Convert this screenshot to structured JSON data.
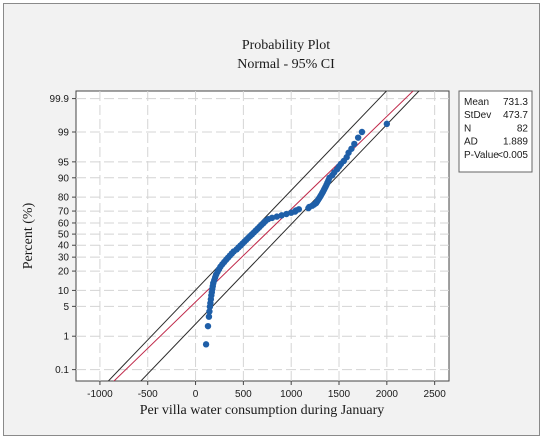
{
  "chart_data": {
    "type": "scatter",
    "title": "Probability Plot",
    "subtitle": "Normal - 95% CI",
    "xlabel": "Per villa water consumption during January",
    "ylabel": "Percent (%)",
    "xlim": [
      -1250,
      2650
    ],
    "x_ticks": [
      -1000,
      -500,
      0,
      500,
      1000,
      1500,
      2000,
      2500
    ],
    "x_tick_labels": [
      "-1000",
      "-500",
      "0",
      "500",
      "1000",
      "1500",
      "2000",
      "2500"
    ],
    "y_scale": "normal-probability",
    "y_ticks": [
      0.1,
      1,
      5,
      10,
      20,
      30,
      40,
      50,
      60,
      70,
      80,
      90,
      95,
      99,
      99.9
    ],
    "y_tick_labels": [
      "0.1",
      "1",
      "5",
      "10",
      "20",
      "30",
      "40",
      "50",
      "60",
      "70",
      "80",
      "90",
      "95",
      "99",
      "99.9"
    ],
    "grid": true,
    "fit": {
      "mean": 731.3,
      "stdev": 473.7
    },
    "stats": [
      {
        "label": "Mean",
        "value": "731.3"
      },
      {
        "label": "StDev",
        "value": "473.7"
      },
      {
        "label": "N",
        "value": "82"
      },
      {
        "label": "AD",
        "value": "1.889"
      },
      {
        "label": "P-Value",
        "value": "<0.005"
      }
    ],
    "series": [
      {
        "x": [
          110,
          130,
          140,
          145,
          150,
          155,
          160,
          165,
          170,
          175,
          180,
          185,
          195,
          205,
          215,
          230,
          245,
          260,
          280,
          300,
          320,
          340,
          360,
          380,
          400,
          430,
          450,
          470,
          490,
          510,
          530,
          550,
          570,
          590,
          610,
          630,
          650,
          670,
          690,
          710,
          730,
          760,
          800,
          850,
          900,
          950,
          1000,
          1040,
          1050,
          1080,
          1180,
          1190,
          1220,
          1240,
          1260,
          1270,
          1280,
          1290,
          1300,
          1310,
          1320,
          1330,
          1340,
          1350,
          1360,
          1370,
          1380,
          1390,
          1400,
          1430,
          1450,
          1480,
          1500,
          1520,
          1550,
          1580,
          1600,
          1630,
          1660,
          1700,
          1740,
          2000
        ],
        "y": [
          0.6,
          1.8,
          3.0,
          3.9,
          4.9,
          5.8,
          6.9,
          8.1,
          9.3,
          10.5,
          11.8,
          13.2,
          14.6,
          16.2,
          17.8,
          19.5,
          21.2,
          22.9,
          24.6,
          26.3,
          28.0,
          29.6,
          31.3,
          33.0,
          34.7,
          36.4,
          38.1,
          39.7,
          41.4,
          43.1,
          44.8,
          46.5,
          48.2,
          49.8,
          51.5,
          53.2,
          54.9,
          56.6,
          58.3,
          59.9,
          61.6,
          63.3,
          64.4,
          65.5,
          66.5,
          67.6,
          68.7,
          69.6,
          70.5,
          71.4,
          72.3,
          73.2,
          74.1,
          75.0,
          76.0,
          77.0,
          78.0,
          79.0,
          80.0,
          81.0,
          82.0,
          83.0,
          84.0,
          85.0,
          86.0,
          87.0,
          88.0,
          89.0,
          90.0,
          91.0,
          92.0,
          93.0,
          93.8,
          94.5,
          95.2,
          96.0,
          96.8,
          97.4,
          98.0,
          98.6,
          99.0,
          99.4
        ]
      }
    ]
  }
}
